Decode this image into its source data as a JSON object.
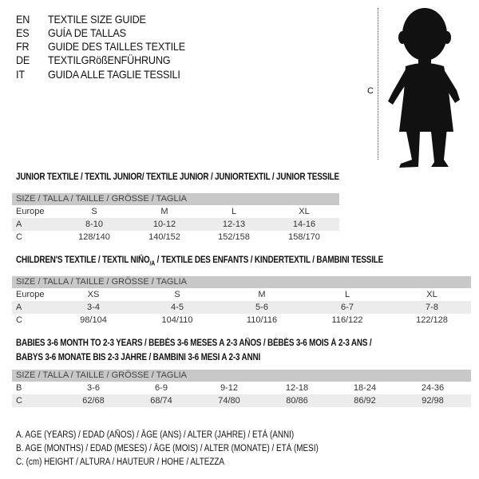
{
  "titles": [
    {
      "code": "EN",
      "text": "TEXTILE SIZE GUIDE"
    },
    {
      "code": "ES",
      "text": "GUÍA DE TALLAS"
    },
    {
      "code": "FR",
      "text": "GUIDE DES TAILLES TEXTILE"
    },
    {
      "code": "DE",
      "text": "TEXTILGRößENFÜHRUNG"
    },
    {
      "code": "IT",
      "text": "GUIDA ALLE TAGLIE TESSILI"
    }
  ],
  "figure": {
    "measure_label": "C",
    "icon": "baby-silhouette-icon"
  },
  "size_header": "SIZE / TALLA / TAILLE / GRÖSSE / TAGLIA",
  "junior": {
    "title": "JUNIOR TEXTILE / TEXTIL JUNIOR/ TEXTILE JUNIOR / JUNIORTEXTIL / JUNIOR TESSILE",
    "rows": [
      {
        "label": "Europe",
        "values": [
          "S",
          "M",
          "L",
          "XL"
        ]
      },
      {
        "label": "A",
        "values": [
          "8-10",
          "10-12",
          "12-13",
          "14-16"
        ]
      },
      {
        "label": "C",
        "values": [
          "128/140",
          "140/152",
          "152/158",
          "158/170"
        ]
      }
    ]
  },
  "children": {
    "title_a": "CHILDREN'S TEXTILE / TEXTIL NIÑO",
    "title_sub": "/A",
    "title_b": " / TEXTILE DES ENFANTS / KINDERTEXTIL / BAMBINI TESSILE",
    "rows": [
      {
        "label": "Europe",
        "values": [
          "XS",
          "S",
          "M",
          "L",
          "XL"
        ]
      },
      {
        "label": "A",
        "values": [
          "3-4",
          "4-5",
          "5-6",
          "6-7",
          "7-8"
        ]
      },
      {
        "label": "C",
        "values": [
          "98/104",
          "104/110",
          "110/116",
          "116/122",
          "122/128"
        ]
      }
    ]
  },
  "babies": {
    "title_1": "BABIES 3-6 MONTH TO 2-3 YEARS / BEBÉS 3-6 MESES A 2-3 AÑOS / BÉBÉS 3-6 MOIS À 2-3 ANS /",
    "title_2": "BABYS 3-6 MONATE BIS 2-3 JAHRE / BAMBINI 3-6 MESI A 2-3 ANNI",
    "rows": [
      {
        "label": "B",
        "values": [
          "3-6",
          "6-9",
          "9-12",
          "12-18",
          "18-24",
          "24-36"
        ]
      },
      {
        "label": "C",
        "values": [
          "62/68",
          "68/74",
          "74/80",
          "80/86",
          "86/92",
          "92/98"
        ]
      }
    ]
  },
  "legend": [
    "A. AGE (YEARS) / EDAD (AÑOS) / ÂGE (ANS) / ALTER (JAHRE) / ETÀ (ANNI)",
    "B. AGE (MONTHS) / EDAD (MESES) / ÂGE (MOIS) / ALTER (MONATE) / ETÀ (MESI)",
    "C. (cm) HEIGHT / ALTURA / HAUTEUR / HÖHE / ALTEZZA"
  ]
}
